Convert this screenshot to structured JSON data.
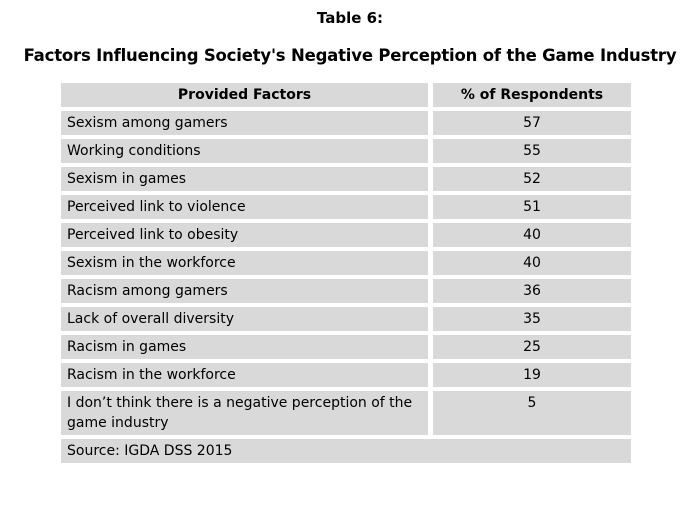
{
  "title": "Table 6:",
  "subtitle": "Factors Influencing Society's Negative Perception of the Game Industry",
  "table": {
    "headers": [
      "Provided Factors",
      "% of Respondents"
    ],
    "rows": [
      {
        "factor": "Sexism among gamers",
        "value": "57"
      },
      {
        "factor": "Working conditions",
        "value": "55"
      },
      {
        "factor": "Sexism in games",
        "value": "52"
      },
      {
        "factor": "Perceived link to violence",
        "value": "51"
      },
      {
        "factor": "Perceived link to obesity",
        "value": "40"
      },
      {
        "factor": "Sexism in the workforce",
        "value": "40"
      },
      {
        "factor": "Racism among gamers",
        "value": "36"
      },
      {
        "factor": "Lack of overall diversity",
        "value": "35"
      },
      {
        "factor": "Racism in games",
        "value": "25"
      },
      {
        "factor": "Racism in the workforce",
        "value": "19"
      },
      {
        "factor": "I don’t think there is a negative perception of the game industry",
        "value": "5"
      }
    ],
    "source": "Source: IGDA DSS 2015"
  },
  "colors": {
    "cell_background": "#d9d9d9",
    "text": "#000000",
    "page_background": "#ffffff"
  },
  "chart_data": {
    "type": "table",
    "title": "Factors Influencing Society's Negative Perception of the Game Industry",
    "columns": [
      "Provided Factors",
      "% of Respondents"
    ],
    "categories": [
      "Sexism among gamers",
      "Working conditions",
      "Sexism in games",
      "Perceived link to violence",
      "Perceived link to obesity",
      "Sexism in the workforce",
      "Racism among gamers",
      "Lack of overall diversity",
      "Racism in games",
      "Racism in the workforce",
      "I don’t think there is a negative perception of the game industry"
    ],
    "values": [
      57,
      55,
      52,
      51,
      40,
      40,
      36,
      35,
      25,
      19,
      5
    ],
    "source": "Source: IGDA DSS 2015"
  }
}
